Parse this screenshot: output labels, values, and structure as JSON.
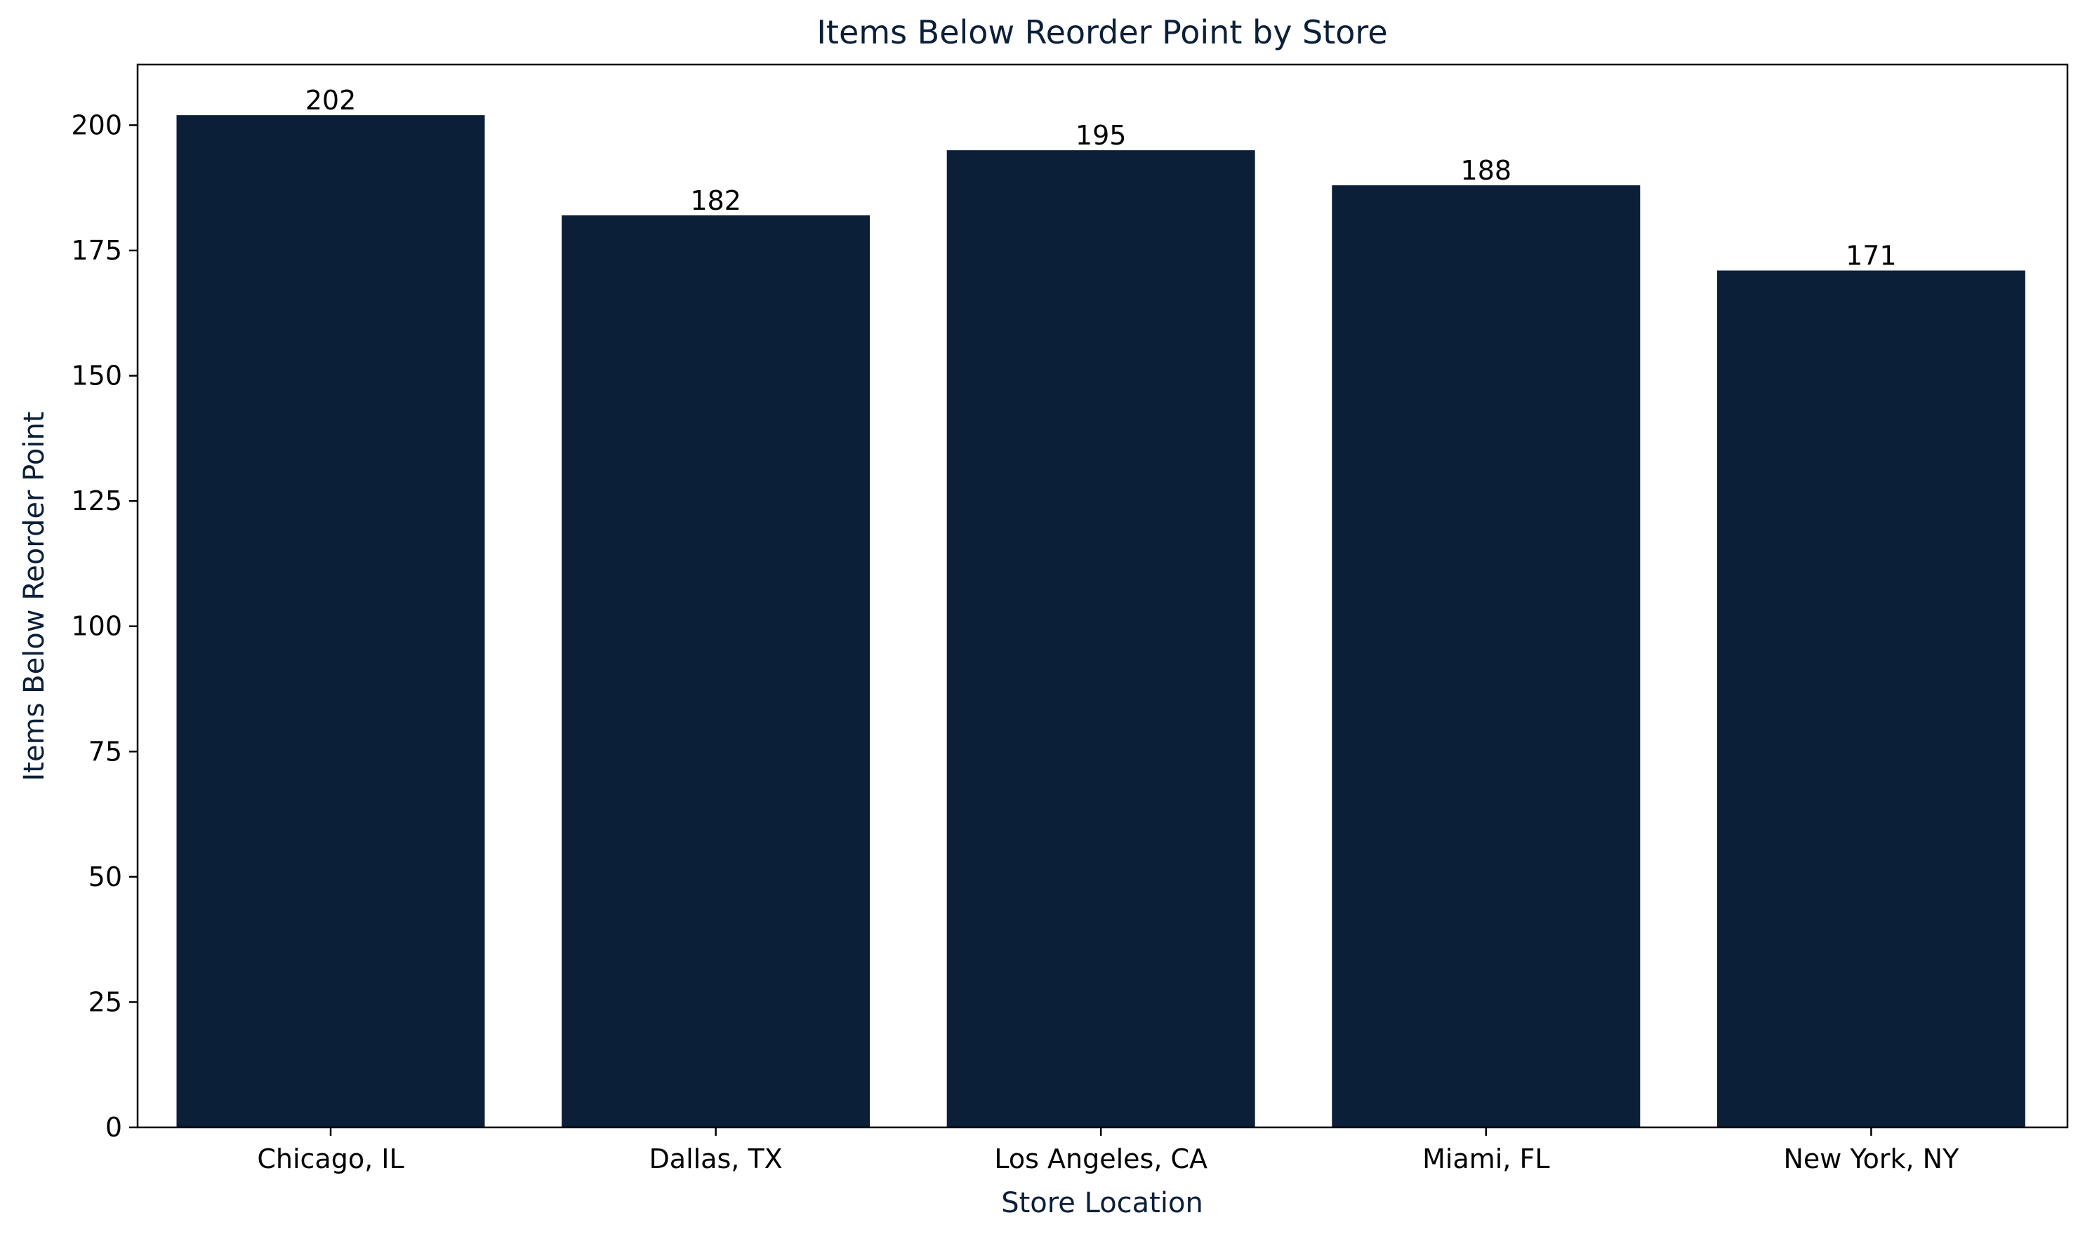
{
  "chart_data": {
    "type": "bar",
    "title": "Items Below Reorder Point by Store",
    "xlabel": "Store Location",
    "ylabel": "Items Below Reorder Point",
    "categories": [
      "Chicago, IL",
      "Dallas, TX",
      "Los Angeles, CA",
      "Miami, FL",
      "New York, NY"
    ],
    "values": [
      202,
      182,
      195,
      188,
      171
    ],
    "data_labels": [
      "202",
      "182",
      "195",
      "188",
      "171"
    ],
    "ylim": [
      0,
      212.1
    ],
    "yticks": [
      0,
      25,
      50,
      75,
      100,
      125,
      150,
      175,
      200
    ],
    "ytick_labels": [
      "0",
      "25",
      "50",
      "75",
      "100",
      "125",
      "150",
      "175",
      "200"
    ],
    "grid": false,
    "legend": "none",
    "colors": {
      "bar": "#0b1f38",
      "title": "#0b1f38",
      "axis_label": "#0b1f38",
      "text": "#000000",
      "axes": "#000000"
    }
  }
}
